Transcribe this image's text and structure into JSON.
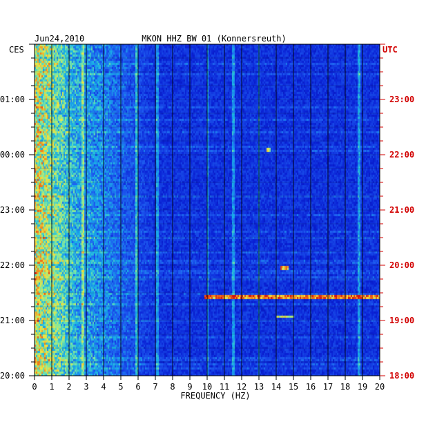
{
  "chart_data": {
    "type": "heatmap",
    "title": "MKON HHZ BW 01 (Konnersreuth)",
    "date": "Jun24,2010",
    "left_timezone": "CES",
    "right_timezone": "UTC",
    "xlabel": "FREQUENCY (HZ)",
    "xlim": [
      0,
      20
    ],
    "x_ticks": [
      0,
      1,
      2,
      3,
      4,
      5,
      6,
      7,
      8,
      9,
      10,
      11,
      12,
      13,
      14,
      15,
      16,
      17,
      18,
      19,
      20
    ],
    "left_ticks": [
      "20:00",
      "21:00",
      "22:00",
      "23:00",
      "00:00",
      "01:00"
    ],
    "right_ticks": [
      "18:00",
      "19:00",
      "20:00",
      "21:00",
      "22:00",
      "23:00"
    ],
    "left_hours": [
      20,
      21,
      22,
      23,
      0,
      1
    ],
    "time_range_hours_local": [
      20.0,
      26.0
    ],
    "grid": true,
    "colormap": [
      "#00007a",
      "#0a22d6",
      "#1e5cf0",
      "#19b4e6",
      "#7fe8a0",
      "#f0e640",
      "#f07818",
      "#d21414"
    ],
    "background_level": 0.12,
    "low_frequency_band": {
      "from_hz": 0,
      "to_hz": 3,
      "level": 0.6
    },
    "noise_band": {
      "from_hz": 3,
      "to_hz": 7,
      "level": 0.28
    },
    "tonal_lines_hz": [
      2.8,
      5.9,
      7.1,
      10.0,
      11.5,
      13.0,
      18.8
    ],
    "events": [
      {
        "time_local": "21:27",
        "from_hz": 9.8,
        "to_hz": 20.0,
        "level": 0.7
      },
      {
        "time_local": "21:05",
        "from_hz": 14.0,
        "to_hz": 15.0,
        "level": 0.55
      },
      {
        "time_local": "21:58",
        "from_hz": 14.2,
        "to_hz": 14.7,
        "level": 0.65
      },
      {
        "time_local": "00:06",
        "from_hz": 13.4,
        "to_hz": 13.7,
        "level": 0.45
      }
    ]
  },
  "colors": {
    "axis": "#000000",
    "right_axis": "#d20000",
    "grid": "#000000"
  }
}
